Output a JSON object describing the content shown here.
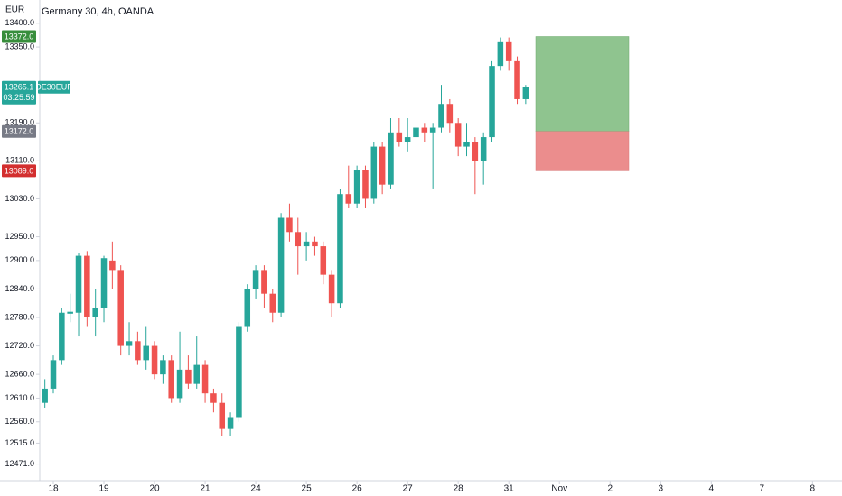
{
  "chart_data": {
    "type": "candlestick",
    "title": "Germany 30, 4h, OANDA",
    "currency": "EUR",
    "symbol": "DE30EUR",
    "countdown": "03:25:59",
    "x": [
      0,
      1,
      2,
      3,
      4,
      5,
      6,
      7,
      8,
      9,
      10,
      11,
      12,
      13,
      14,
      15,
      16,
      17,
      18,
      19,
      20,
      21,
      22,
      23,
      24,
      25,
      26,
      27,
      28,
      29,
      30,
      31,
      32,
      33,
      34,
      35,
      36,
      37,
      38,
      39,
      40,
      41,
      42,
      43,
      44,
      45,
      46,
      47,
      48,
      49,
      50,
      51,
      52,
      53,
      54,
      55,
      56,
      57
    ],
    "open": [
      12600,
      12630,
      12690,
      12788,
      12790,
      12910,
      12780,
      12800,
      12900,
      12880,
      12720,
      12730,
      12690,
      12720,
      12660,
      12690,
      12610,
      12670,
      12640,
      12680,
      12620,
      12600,
      12545,
      12570,
      12760,
      12840,
      12880,
      12830,
      12790,
      12990,
      12960,
      12930,
      12940,
      12930,
      12870,
      12810,
      13040,
      13020,
      13090,
      13030,
      13140,
      13060,
      13170,
      13150,
      13160,
      13180,
      13170,
      13180,
      13230,
      13190,
      13140,
      13150,
      13110,
      13160,
      13310,
      13360,
      13320,
      13240
    ],
    "high": [
      12650,
      12700,
      12800,
      12830,
      12915,
      12920,
      12840,
      12910,
      12940,
      12890,
      12770,
      12750,
      12760,
      12730,
      12700,
      12700,
      12750,
      12700,
      12740,
      12690,
      12630,
      12620,
      12580,
      12770,
      12850,
      12890,
      12890,
      12840,
      13000,
      13020,
      12990,
      12960,
      12950,
      12940,
      12880,
      13050,
      13100,
      13100,
      13100,
      13150,
      13150,
      13200,
      13200,
      13200,
      13200,
      13190,
      13190,
      13270,
      13240,
      13200,
      13190,
      13160,
      13170,
      13320,
      13370,
      13370,
      13330,
      13270
    ],
    "low": [
      12590,
      12620,
      12680,
      12770,
      12740,
      12760,
      12740,
      12770,
      12840,
      12700,
      12700,
      12680,
      12670,
      12650,
      12640,
      12600,
      12600,
      12630,
      12630,
      12600,
      12580,
      12530,
      12530,
      12560,
      12750,
      12820,
      12800,
      12770,
      12780,
      12940,
      12870,
      12900,
      12910,
      12850,
      12780,
      12800,
      13010,
      13010,
      13010,
      13020,
      13040,
      13050,
      13140,
      13130,
      13140,
      13150,
      13050,
      13170,
      13170,
      13120,
      13120,
      13040,
      13060,
      13150,
      13300,
      13300,
      13230,
      13230
    ],
    "close": [
      12630,
      12690,
      12790,
      12792,
      12910,
      12780,
      12800,
      12905,
      12880,
      12720,
      12730,
      12690,
      12720,
      12660,
      12690,
      12610,
      12670,
      12640,
      12680,
      12620,
      12600,
      12545,
      12570,
      12760,
      12840,
      12880,
      12830,
      12790,
      12990,
      12960,
      12930,
      12940,
      12930,
      12870,
      12810,
      13040,
      13020,
      13090,
      13030,
      13140,
      13060,
      13170,
      13150,
      13160,
      13180,
      13170,
      13180,
      13230,
      13190,
      13140,
      13150,
      13110,
      13160,
      13310,
      13360,
      13320,
      13240,
      13265.1
    ],
    "up_color": "#26a69a",
    "down_color": "#ef5350",
    "xlim": [
      -0.5,
      94.5
    ],
    "xticks": [
      {
        "value": 1,
        "label": "18"
      },
      {
        "value": 7,
        "label": "19"
      },
      {
        "value": 13,
        "label": "20"
      },
      {
        "value": 19,
        "label": "21"
      },
      {
        "value": 25,
        "label": "24"
      },
      {
        "value": 31,
        "label": "25"
      },
      {
        "value": 37,
        "label": "26"
      },
      {
        "value": 43,
        "label": "27"
      },
      {
        "value": 49,
        "label": "28"
      },
      {
        "value": 55,
        "label": "31"
      },
      {
        "value": 61,
        "label": "Nov"
      },
      {
        "value": 67,
        "label": "2"
      },
      {
        "value": 73,
        "label": "3"
      },
      {
        "value": 79,
        "label": "4"
      },
      {
        "value": 85,
        "label": "7"
      },
      {
        "value": 91,
        "label": "8"
      }
    ],
    "ylim": [
      12436,
      13449
    ],
    "yticks": [
      {
        "value": 13400,
        "label": "13400.0"
      },
      {
        "value": 13350,
        "label": "13350.0"
      },
      {
        "value": 13190,
        "label": "13190.0"
      },
      {
        "value": 13110,
        "label": "13110.0"
      },
      {
        "value": 13030,
        "label": "13030.0"
      },
      {
        "value": 12950,
        "label": "12950.0"
      },
      {
        "value": 12900,
        "label": "12900.0"
      },
      {
        "value": 12840,
        "label": "12840.0"
      },
      {
        "value": 12780,
        "label": "12780.0"
      },
      {
        "value": 12720,
        "label": "12720.0"
      },
      {
        "value": 12660,
        "label": "12660.0"
      },
      {
        "value": 12610,
        "label": "12610.0"
      },
      {
        "value": 12560,
        "label": "12560.0"
      },
      {
        "value": 12515,
        "label": "12515.0"
      },
      {
        "value": 12471,
        "label": "12471.0"
      }
    ],
    "grid": false,
    "last_price": 13265.1,
    "position": {
      "target": {
        "value": 13372,
        "label": "13372.0"
      },
      "entry": {
        "value": 13172,
        "label": "13172.0"
      },
      "stop": {
        "value": 13089,
        "label": "13089.0"
      },
      "profit_color": "#8fc48f",
      "loss_color": "#eb8d8d",
      "target_color": "#388e3c",
      "entry_color": "#787b86",
      "stop_color": "#d32f2f"
    }
  }
}
